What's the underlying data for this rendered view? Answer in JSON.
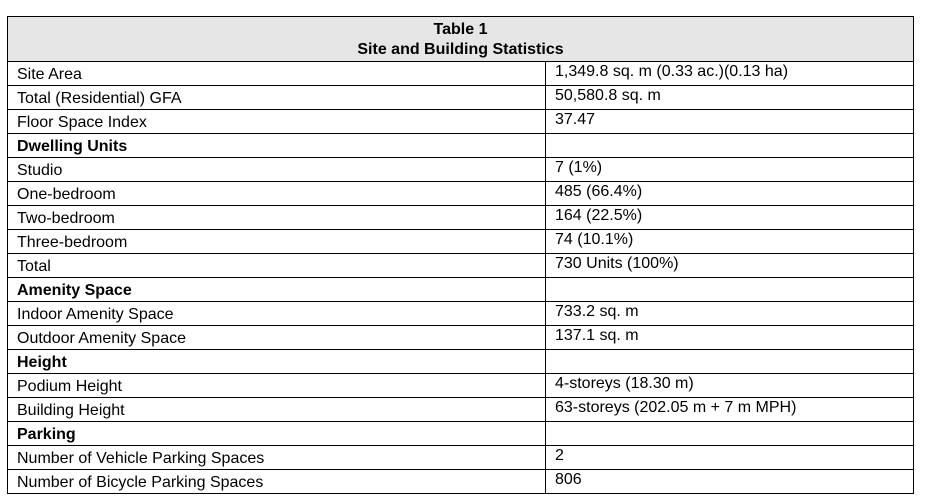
{
  "table": {
    "title": "Table 1",
    "subtitle": "Site and Building Statistics",
    "rows": [
      {
        "label": "Site Area",
        "value": "1,349.8 sq. m (0.33 ac.)(0.13 ha)",
        "section": false
      },
      {
        "label": "Total (Residential) GFA",
        "value": "50,580.8 sq. m",
        "section": false
      },
      {
        "label": "Floor Space Index",
        "value": "37.47",
        "section": false
      },
      {
        "label": "Dwelling Units",
        "value": "",
        "section": true
      },
      {
        "label": "Studio",
        "value": "7 (1%)",
        "section": false
      },
      {
        "label": "One-bedroom",
        "value": "485 (66.4%)",
        "section": false
      },
      {
        "label": "Two-bedroom",
        "value": "164 (22.5%)",
        "section": false
      },
      {
        "label": "Three-bedroom",
        "value": "74 (10.1%)",
        "section": false
      },
      {
        "label": "Total",
        "value": "730 Units (100%)",
        "section": false
      },
      {
        "label": "Amenity Space",
        "value": "",
        "section": true
      },
      {
        "label": "Indoor Amenity Space",
        "value": "733.2 sq. m",
        "section": false
      },
      {
        "label": "Outdoor Amenity Space",
        "value": "137.1 sq. m",
        "section": false
      },
      {
        "label": "Height",
        "value": "",
        "section": true
      },
      {
        "label": "Podium Height",
        "value": "4-storeys (18.30 m)",
        "section": false
      },
      {
        "label": "Building Height",
        "value": "63-storeys (202.05 m + 7 m MPH)",
        "section": false
      },
      {
        "label": "Parking",
        "value": "",
        "section": true
      },
      {
        "label": "Number of Vehicle Parking Spaces",
        "value": "2",
        "section": false
      },
      {
        "label": "Number of Bicycle Parking Spaces",
        "value": "806",
        "section": false
      }
    ]
  }
}
